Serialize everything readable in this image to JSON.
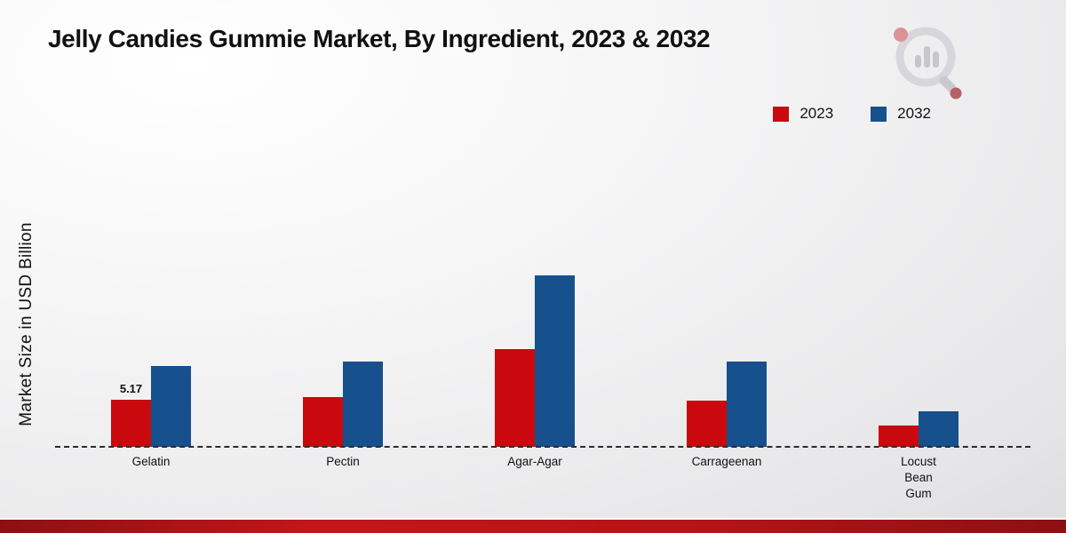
{
  "title": "Jelly Candies Gummie Market, By Ingredient, 2023 & 2032",
  "ylabel": "Market Size in USD Billion",
  "legend": [
    {
      "label": "2023",
      "color": "#c9090e"
    },
    {
      "label": "2032",
      "color": "#16508d"
    }
  ],
  "chart_data": {
    "type": "bar",
    "title": "Jelly Candies Gummie Market, By Ingredient, 2023 & 2032",
    "xlabel": "",
    "ylabel": "Market Size in USD Billion",
    "ylim": [
      0,
      20
    ],
    "grid": false,
    "legend_position": "top-right",
    "baseline_style": "dashed",
    "categories": [
      "Gelatin",
      "Pectin",
      "Agar-Agar",
      "Carrageenan",
      "Locust Bean Gum"
    ],
    "series": [
      {
        "name": "2023",
        "color": "#c9090e",
        "values": [
          5.17,
          5.4,
          10.7,
          5.0,
          2.3
        ]
      },
      {
        "name": "2032",
        "color": "#16508d",
        "values": [
          8.8,
          9.3,
          18.7,
          9.3,
          3.9
        ]
      }
    ],
    "annotations": [
      {
        "series": "2023",
        "category": "Gelatin",
        "text": "5.17"
      }
    ]
  }
}
